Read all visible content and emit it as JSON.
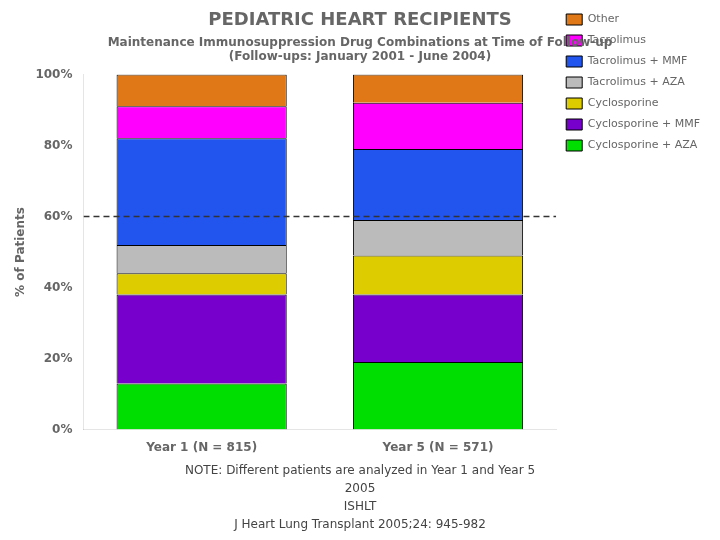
{
  "chart_data": {
    "type": "bar",
    "stacked": true,
    "title": "PEDIATRIC HEART RECIPIENTS",
    "subtitle": "Maintenance Immunosuppression Drug Combinations at Time of Follow-up\n(Follow-ups: January 2001 - June 2004)",
    "ylabel": "% of Patients",
    "categories": [
      "Year 1 (N = 815)",
      "Year 5 (N = 571)"
    ],
    "series": [
      {
        "name": "Cyclosporine + AZA",
        "color": "#00DD00",
        "values": [
          13,
          19
        ]
      },
      {
        "name": "Cyclosporine + MMF",
        "color": "#7700CC",
        "values": [
          25,
          19
        ]
      },
      {
        "name": "Cyclosporine",
        "color": "#DDCC00",
        "values": [
          6,
          11
        ]
      },
      {
        "name": "Tacrolimus + AZA",
        "color": "#BBBBBB",
        "values": [
          8,
          10
        ]
      },
      {
        "name": "Tacrolimus + MMF",
        "color": "#2255EE",
        "values": [
          30,
          20
        ]
      },
      {
        "name": "Tacrolimus",
        "color": "#FF00FF",
        "values": [
          9,
          13
        ]
      },
      {
        "name": "Other",
        "color": "#E07818",
        "values": [
          9,
          8
        ]
      }
    ],
    "hlines": [
      60
    ],
    "ylim": [
      0,
      100
    ],
    "yticks": [
      {
        "value": 0,
        "label": "0%"
      },
      {
        "value": 20,
        "label": "20%"
      },
      {
        "value": 40,
        "label": "40%"
      },
      {
        "value": 60,
        "label": "60%"
      },
      {
        "value": 80,
        "label": "80%"
      },
      {
        "value": 100,
        "label": "100%"
      }
    ],
    "grid": false,
    "legend": "right",
    "annotations": [
      "NOTE: Different patients are analyzed in Year 1 and Year 5",
      "2005",
      "ISHLT",
      "J Heart Lung Transplant 2005;24: 945-982"
    ]
  }
}
